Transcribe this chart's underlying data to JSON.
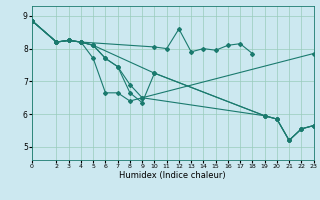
{
  "xlabel": "Humidex (Indice chaleur)",
  "bg_color": "#cce8f0",
  "plot_bg_color": "#cce8f0",
  "grid_color": "#99ccbb",
  "line_color": "#1a7a6e",
  "xlim": [
    0,
    23
  ],
  "ylim": [
    4.6,
    9.3
  ],
  "yticks": [
    5,
    6,
    7,
    8,
    9
  ],
  "xticks": [
    0,
    2,
    3,
    4,
    5,
    6,
    7,
    8,
    9,
    10,
    11,
    12,
    13,
    14,
    15,
    16,
    17,
    18,
    19,
    20,
    21,
    22,
    23
  ],
  "series": [
    {
      "x": [
        0,
        2,
        3,
        4,
        10,
        11,
        12,
        13,
        14,
        15,
        16,
        17,
        18
      ],
      "y": [
        8.85,
        8.2,
        8.25,
        8.2,
        8.05,
        8.0,
        8.6,
        7.9,
        8.0,
        7.95,
        8.1,
        8.15,
        7.85
      ]
    },
    {
      "x": [
        0,
        2,
        3,
        4,
        5,
        10,
        19,
        20,
        21,
        22,
        23
      ],
      "y": [
        8.85,
        8.2,
        8.25,
        8.2,
        8.1,
        7.25,
        5.95,
        5.85,
        5.2,
        5.55,
        5.65
      ]
    },
    {
      "x": [
        0,
        2,
        3,
        4,
        5,
        6,
        7,
        8,
        9,
        10,
        19,
        20,
        21,
        22,
        23
      ],
      "y": [
        8.85,
        8.2,
        8.25,
        8.2,
        8.1,
        7.7,
        7.45,
        6.65,
        6.35,
        7.25,
        5.95,
        5.85,
        5.2,
        5.55,
        5.65
      ]
    },
    {
      "x": [
        0,
        2,
        3,
        4,
        5,
        6,
        7,
        8,
        9,
        19,
        20,
        21,
        22,
        23
      ],
      "y": [
        8.85,
        8.2,
        8.25,
        8.2,
        8.1,
        7.7,
        7.45,
        6.9,
        6.5,
        5.95,
        5.85,
        5.2,
        5.55,
        5.65
      ]
    },
    {
      "x": [
        0,
        2,
        3,
        4,
        5,
        6,
        7,
        8,
        9,
        23
      ],
      "y": [
        8.85,
        8.2,
        8.25,
        8.2,
        7.7,
        6.65,
        6.65,
        6.4,
        6.5,
        7.85
      ]
    }
  ],
  "marker": "D",
  "markersize": 2.0,
  "linewidth": 0.8
}
